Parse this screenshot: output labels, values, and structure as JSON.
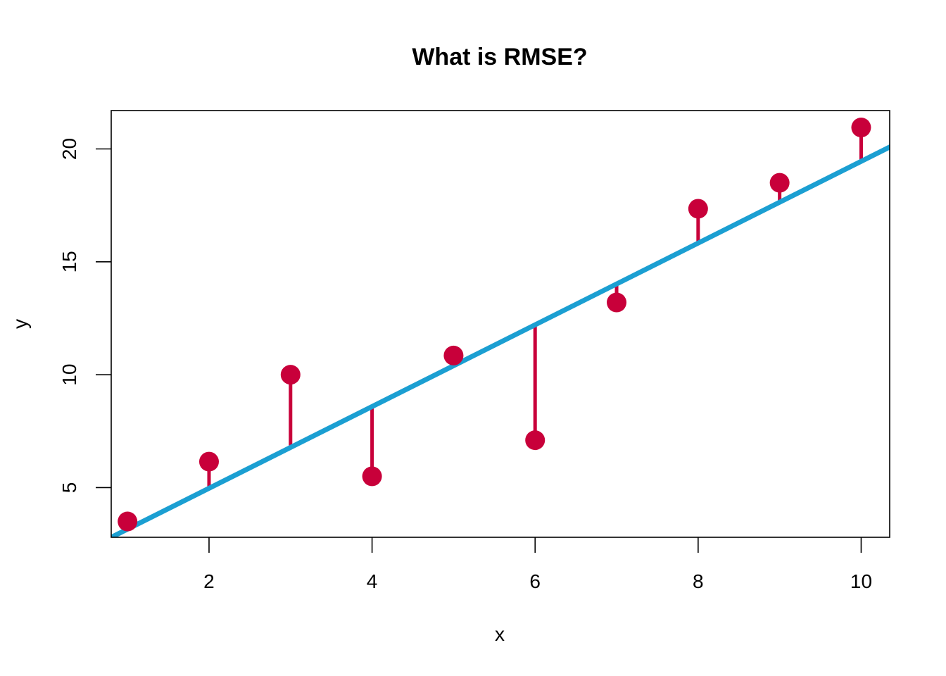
{
  "chart_data": {
    "type": "scatter",
    "title": "What is RMSE?",
    "xlabel": "x",
    "ylabel": "y",
    "xlim": [
      0.8,
      10.35
    ],
    "ylim": [
      2.8,
      21.7
    ],
    "x_ticks": [
      2,
      4,
      6,
      8,
      10
    ],
    "y_ticks": [
      5,
      10,
      15,
      20
    ],
    "points": {
      "x": [
        1,
        2,
        3,
        4,
        5,
        6,
        7,
        8,
        9,
        10
      ],
      "y": [
        3.5,
        6.15,
        10.0,
        5.5,
        10.85,
        7.1,
        13.2,
        17.35,
        18.5,
        20.95
      ]
    },
    "fit_line": {
      "intercept": 1.35,
      "slope": 1.81
    },
    "grid": false,
    "legend": "none",
    "colors": {
      "points": "#C8003A",
      "residuals": "#C8003A",
      "fit_line": "#1B9FD2"
    }
  }
}
